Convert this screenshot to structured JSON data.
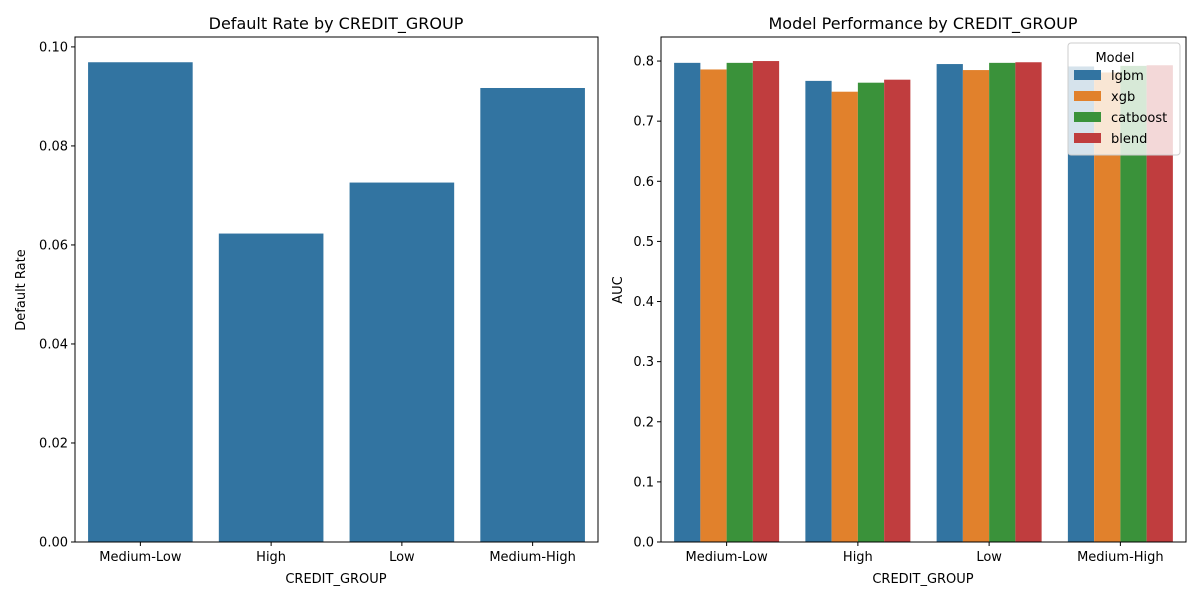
{
  "colors": {
    "lgbm": "#3274a1",
    "xgb": "#e1812c",
    "catboost": "#3a923a",
    "blend": "#c03d3e",
    "single": "#3274a1"
  },
  "chart_data": [
    {
      "type": "bar",
      "title": "Default Rate by CREDIT_GROUP",
      "xlabel": "CREDIT_GROUP",
      "ylabel": "Default Rate",
      "categories": [
        "Medium-Low",
        "High",
        "Low",
        "Medium-High"
      ],
      "values": [
        0.0969,
        0.0623,
        0.0726,
        0.0917
      ],
      "ylim": [
        0,
        0.102
      ],
      "yticks": [
        0.0,
        0.02,
        0.04,
        0.06,
        0.08,
        0.1
      ],
      "ytick_labels": [
        "0.00",
        "0.02",
        "0.04",
        "0.06",
        "0.08",
        "0.10"
      ],
      "grid": false,
      "legend": null
    },
    {
      "type": "bar",
      "title": "Model Performance by CREDIT_GROUP",
      "xlabel": "CREDIT_GROUP",
      "ylabel": "AUC",
      "categories": [
        "Medium-Low",
        "High",
        "Low",
        "Medium-High"
      ],
      "series": [
        {
          "name": "lgbm",
          "values": [
            0.797,
            0.767,
            0.795,
            0.791
          ]
        },
        {
          "name": "xgb",
          "values": [
            0.786,
            0.749,
            0.785,
            0.781
          ]
        },
        {
          "name": "catboost",
          "values": [
            0.797,
            0.764,
            0.797,
            0.792
          ]
        },
        {
          "name": "blend",
          "values": [
            0.8,
            0.769,
            0.798,
            0.793
          ]
        }
      ],
      "ylim": [
        0,
        0.84
      ],
      "yticks": [
        0.0,
        0.1,
        0.2,
        0.3,
        0.4,
        0.5,
        0.6,
        0.7,
        0.8
      ],
      "ytick_labels": [
        "0.0",
        "0.1",
        "0.2",
        "0.3",
        "0.4",
        "0.5",
        "0.6",
        "0.7",
        "0.8"
      ],
      "grid": false,
      "legend": {
        "title": "Model",
        "placement": "top-right"
      }
    }
  ]
}
